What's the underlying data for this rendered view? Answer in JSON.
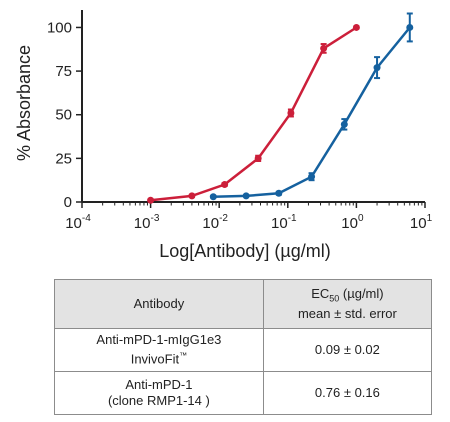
{
  "chart_data": {
    "type": "line",
    "xlabel": "Log[Antibody] (µg/ml)",
    "ylabel": "% Absorbance",
    "xscale": "log",
    "xlim": [
      0.0001,
      10
    ],
    "ylim": [
      0,
      110
    ],
    "x_ticks": [
      {
        "base": "10",
        "exp": "-4"
      },
      {
        "base": "10",
        "exp": "-3"
      },
      {
        "base": "10",
        "exp": "-2"
      },
      {
        "base": "10",
        "exp": "-1"
      },
      {
        "base": "10",
        "exp": "0"
      },
      {
        "base": "10",
        "exp": "1"
      }
    ],
    "y_ticks": [
      "0",
      "25",
      "50",
      "75",
      "100"
    ],
    "grid": false,
    "series": [
      {
        "color": "#cc1f3a",
        "x": [
          0.001,
          0.004,
          0.012,
          0.037,
          0.111,
          0.333,
          1.0
        ],
        "y": [
          1,
          3.5,
          10,
          25,
          51,
          88,
          100
        ],
        "err": [
          0.5,
          0.6,
          0.8,
          1.5,
          2,
          2.5,
          0.6
        ]
      },
      {
        "color": "#15619f",
        "x": [
          0.0082,
          0.0247,
          0.074,
          0.222,
          0.667,
          2.0,
          6.0
        ],
        "y": [
          3,
          3.5,
          5,
          14.5,
          44.5,
          77,
          100
        ],
        "err": [
          0.5,
          0.5,
          0.8,
          2,
          3,
          6,
          8
        ]
      }
    ]
  },
  "table": {
    "headers": {
      "antibody": "Antibody",
      "ec50_prefix": "EC",
      "ec50_sub": "50",
      "ec50_units": " (µg/ml)",
      "ec50_line2": "mean ± std. error"
    },
    "rows": [
      {
        "name_line1": "Anti-mPD-1-mIgG1e3",
        "name_line2": "InvivoFit",
        "name_tm": "™",
        "value": "0.09 ± 0.02"
      },
      {
        "name_line1": "Anti-mPD-1",
        "name_line2": "(clone RMP1-14 )",
        "value": "0.76 ± 0.16"
      }
    ]
  }
}
